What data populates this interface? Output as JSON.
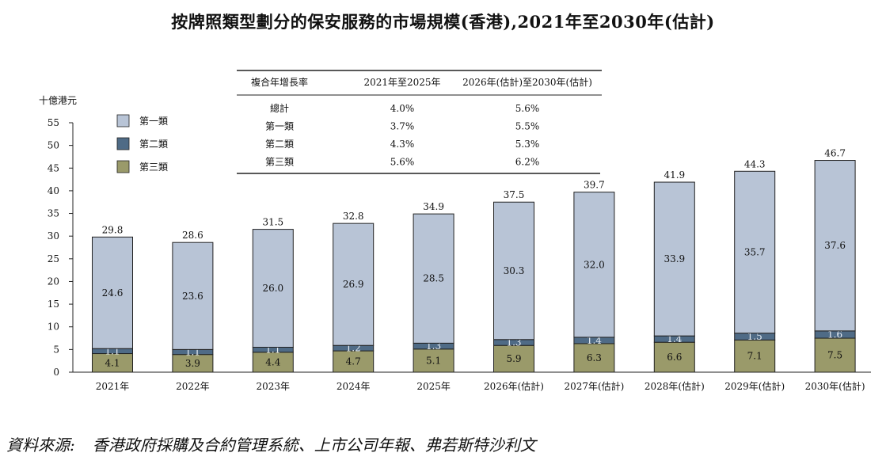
{
  "title": "按牌照類型劃分的保安服務的市場規模(香港),2021年至2030年(估計)",
  "source": {
    "label": "資料來源:",
    "text": "香港政府採購及合約管理系統、上市公司年報、弗若斯特沙利文"
  },
  "colors": {
    "class1": "#b8c4d6",
    "class2": "#4f6b86",
    "class3": "#9a9a6a",
    "axis": "#222222",
    "bar_stroke": "#222222"
  },
  "cagr_table": {
    "headers": [
      "複合年增長率",
      "2021年至2025年",
      "2026年(估計)至2030年(估計)"
    ],
    "rows": [
      [
        "總計",
        "4.0%",
        "5.6%"
      ],
      [
        "第一類",
        "3.7%",
        "5.5%"
      ],
      [
        "第二類",
        "4.3%",
        "5.3%"
      ],
      [
        "第三類",
        "5.6%",
        "6.2%"
      ]
    ]
  },
  "chart_data": {
    "type": "bar",
    "stacked": true,
    "ylabel": "十億港元",
    "ylim": [
      0,
      55
    ],
    "yticks": [
      0,
      5,
      10,
      15,
      20,
      25,
      30,
      35,
      40,
      45,
      50,
      55
    ],
    "legend_position": "top-left",
    "categories": [
      "2021年",
      "2022年",
      "2023年",
      "2024年",
      "2025年",
      "2026年(估計)",
      "2027年(估計)",
      "2028年(估計)",
      "2029年(估計)",
      "2030年(估計)"
    ],
    "series": [
      {
        "name": "第三類",
        "values": [
          4.1,
          3.9,
          4.4,
          4.7,
          5.1,
          5.9,
          6.3,
          6.6,
          7.1,
          7.5
        ]
      },
      {
        "name": "第二類",
        "values": [
          1.1,
          1.1,
          1.1,
          1.2,
          1.3,
          1.3,
          1.4,
          1.4,
          1.5,
          1.6
        ]
      },
      {
        "name": "第一類",
        "values": [
          24.6,
          23.6,
          26.0,
          26.9,
          28.5,
          30.3,
          32.0,
          33.9,
          35.7,
          37.6
        ]
      }
    ],
    "totals": [
      29.8,
      28.6,
      31.5,
      32.8,
      34.9,
      37.5,
      39.7,
      41.9,
      44.3,
      46.7
    ],
    "legend": [
      "第一類",
      "第二類",
      "第三類"
    ]
  }
}
